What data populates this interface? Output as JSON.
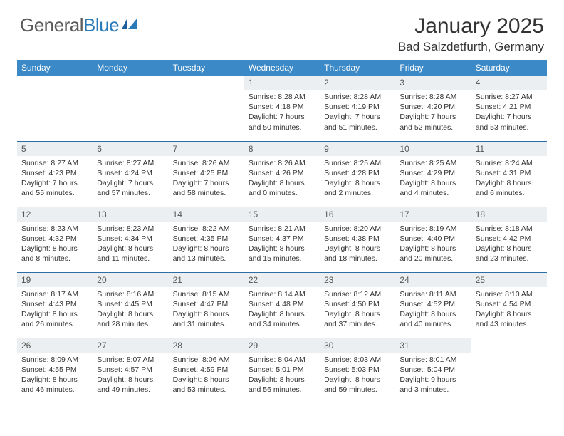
{
  "brand": {
    "part1": "General",
    "part2": "Blue"
  },
  "title": "January 2025",
  "location": "Bad Salzdetfurth, Germany",
  "colors": {
    "header_bg": "#3b89c7",
    "header_text": "#ffffff",
    "rule": "#2e6ea6",
    "daynum_bg": "#eceff1",
    "brand_gray": "#5a5a5a",
    "brand_blue": "#2b7ab8"
  },
  "weekdays": [
    "Sunday",
    "Monday",
    "Tuesday",
    "Wednesday",
    "Thursday",
    "Friday",
    "Saturday"
  ],
  "weeks": [
    [
      {
        "n": "",
        "sr": "",
        "ss": "",
        "dl": ""
      },
      {
        "n": "",
        "sr": "",
        "ss": "",
        "dl": ""
      },
      {
        "n": "",
        "sr": "",
        "ss": "",
        "dl": ""
      },
      {
        "n": "1",
        "sr": "8:28 AM",
        "ss": "4:18 PM",
        "dl": "7 hours and 50 minutes."
      },
      {
        "n": "2",
        "sr": "8:28 AM",
        "ss": "4:19 PM",
        "dl": "7 hours and 51 minutes."
      },
      {
        "n": "3",
        "sr": "8:28 AM",
        "ss": "4:20 PM",
        "dl": "7 hours and 52 minutes."
      },
      {
        "n": "4",
        "sr": "8:27 AM",
        "ss": "4:21 PM",
        "dl": "7 hours and 53 minutes."
      }
    ],
    [
      {
        "n": "5",
        "sr": "8:27 AM",
        "ss": "4:23 PM",
        "dl": "7 hours and 55 minutes."
      },
      {
        "n": "6",
        "sr": "8:27 AM",
        "ss": "4:24 PM",
        "dl": "7 hours and 57 minutes."
      },
      {
        "n": "7",
        "sr": "8:26 AM",
        "ss": "4:25 PM",
        "dl": "7 hours and 58 minutes."
      },
      {
        "n": "8",
        "sr": "8:26 AM",
        "ss": "4:26 PM",
        "dl": "8 hours and 0 minutes."
      },
      {
        "n": "9",
        "sr": "8:25 AM",
        "ss": "4:28 PM",
        "dl": "8 hours and 2 minutes."
      },
      {
        "n": "10",
        "sr": "8:25 AM",
        "ss": "4:29 PM",
        "dl": "8 hours and 4 minutes."
      },
      {
        "n": "11",
        "sr": "8:24 AM",
        "ss": "4:31 PM",
        "dl": "8 hours and 6 minutes."
      }
    ],
    [
      {
        "n": "12",
        "sr": "8:23 AM",
        "ss": "4:32 PM",
        "dl": "8 hours and 8 minutes."
      },
      {
        "n": "13",
        "sr": "8:23 AM",
        "ss": "4:34 PM",
        "dl": "8 hours and 11 minutes."
      },
      {
        "n": "14",
        "sr": "8:22 AM",
        "ss": "4:35 PM",
        "dl": "8 hours and 13 minutes."
      },
      {
        "n": "15",
        "sr": "8:21 AM",
        "ss": "4:37 PM",
        "dl": "8 hours and 15 minutes."
      },
      {
        "n": "16",
        "sr": "8:20 AM",
        "ss": "4:38 PM",
        "dl": "8 hours and 18 minutes."
      },
      {
        "n": "17",
        "sr": "8:19 AM",
        "ss": "4:40 PM",
        "dl": "8 hours and 20 minutes."
      },
      {
        "n": "18",
        "sr": "8:18 AM",
        "ss": "4:42 PM",
        "dl": "8 hours and 23 minutes."
      }
    ],
    [
      {
        "n": "19",
        "sr": "8:17 AM",
        "ss": "4:43 PM",
        "dl": "8 hours and 26 minutes."
      },
      {
        "n": "20",
        "sr": "8:16 AM",
        "ss": "4:45 PM",
        "dl": "8 hours and 28 minutes."
      },
      {
        "n": "21",
        "sr": "8:15 AM",
        "ss": "4:47 PM",
        "dl": "8 hours and 31 minutes."
      },
      {
        "n": "22",
        "sr": "8:14 AM",
        "ss": "4:48 PM",
        "dl": "8 hours and 34 minutes."
      },
      {
        "n": "23",
        "sr": "8:12 AM",
        "ss": "4:50 PM",
        "dl": "8 hours and 37 minutes."
      },
      {
        "n": "24",
        "sr": "8:11 AM",
        "ss": "4:52 PM",
        "dl": "8 hours and 40 minutes."
      },
      {
        "n": "25",
        "sr": "8:10 AM",
        "ss": "4:54 PM",
        "dl": "8 hours and 43 minutes."
      }
    ],
    [
      {
        "n": "26",
        "sr": "8:09 AM",
        "ss": "4:55 PM",
        "dl": "8 hours and 46 minutes."
      },
      {
        "n": "27",
        "sr": "8:07 AM",
        "ss": "4:57 PM",
        "dl": "8 hours and 49 minutes."
      },
      {
        "n": "28",
        "sr": "8:06 AM",
        "ss": "4:59 PM",
        "dl": "8 hours and 53 minutes."
      },
      {
        "n": "29",
        "sr": "8:04 AM",
        "ss": "5:01 PM",
        "dl": "8 hours and 56 minutes."
      },
      {
        "n": "30",
        "sr": "8:03 AM",
        "ss": "5:03 PM",
        "dl": "8 hours and 59 minutes."
      },
      {
        "n": "31",
        "sr": "8:01 AM",
        "ss": "5:04 PM",
        "dl": "9 hours and 3 minutes."
      },
      {
        "n": "",
        "sr": "",
        "ss": "",
        "dl": ""
      }
    ]
  ],
  "labels": {
    "sunrise": "Sunrise:",
    "sunset": "Sunset:",
    "daylight": "Daylight:"
  }
}
